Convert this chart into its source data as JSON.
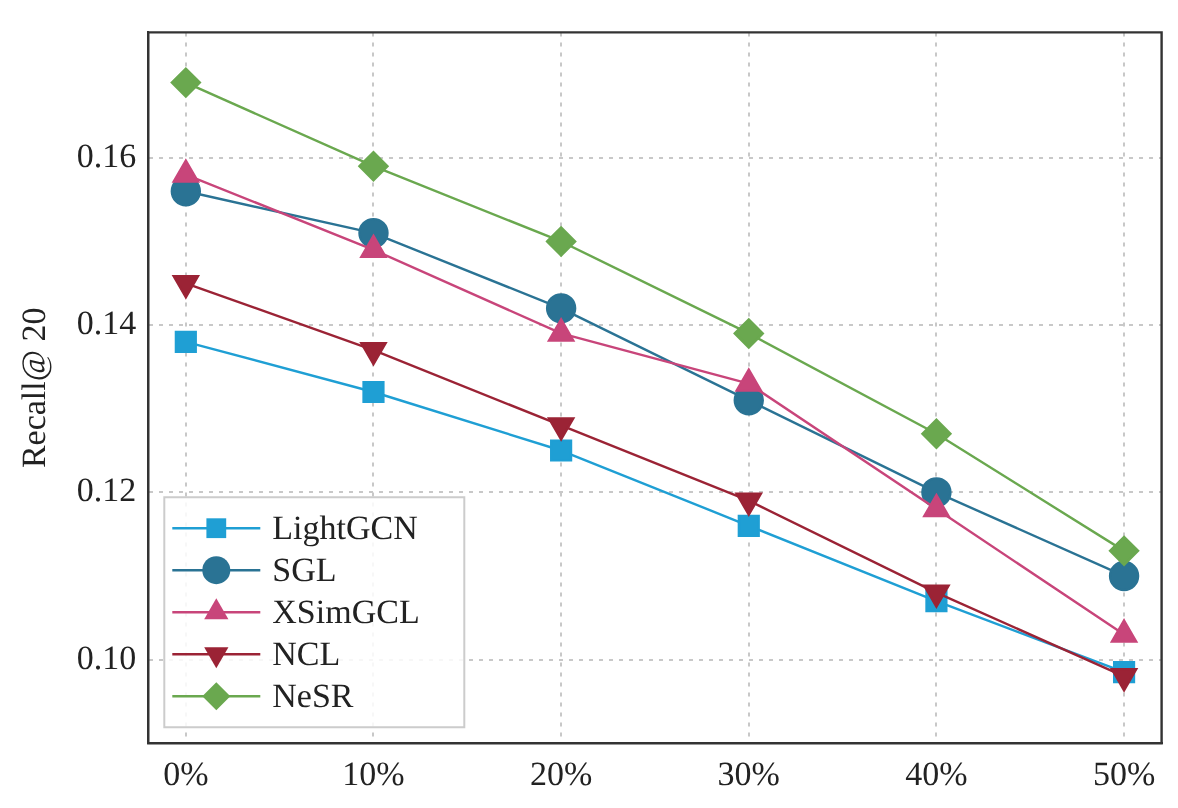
{
  "chart_data": {
    "type": "line",
    "ylabel": "Recall@ 20",
    "x": [
      0,
      10,
      20,
      30,
      40,
      50
    ],
    "xlim": [
      -2,
      52
    ],
    "xticks": [
      {
        "value": 0,
        "label": "0%"
      },
      {
        "value": 10,
        "label": "10%"
      },
      {
        "value": 20,
        "label": "20%"
      },
      {
        "value": 30,
        "label": "30%"
      },
      {
        "value": 40,
        "label": "40%"
      },
      {
        "value": 50,
        "label": "50%"
      }
    ],
    "ylim": [
      0.09,
      0.175
    ],
    "yticks": [
      {
        "value": 0.1,
        "label": "0.10"
      },
      {
        "value": 0.12,
        "label": "0.12"
      },
      {
        "value": 0.14,
        "label": "0.14"
      },
      {
        "value": 0.16,
        "label": "0.16"
      }
    ],
    "grid": true,
    "legend": "bottom left",
    "line_style": "solid",
    "series": [
      {
        "name": "LightGCN",
        "color": "#1f9fd4",
        "marker": "square",
        "values": [
          0.138,
          0.132,
          0.125,
          0.116,
          0.107,
          0.0985
        ]
      },
      {
        "name": "SGL",
        "color": "#2a7394",
        "marker": "circle",
        "values": [
          0.156,
          0.151,
          0.142,
          0.131,
          0.12,
          0.11
        ]
      },
      {
        "name": "XSimGCL",
        "color": "#c8457a",
        "marker": "triangle",
        "values": [
          0.158,
          0.149,
          0.139,
          0.133,
          0.118,
          0.103
        ]
      },
      {
        "name": "NCL",
        "color": "#9b2335",
        "marker": "triangle-down",
        "values": [
          0.145,
          0.137,
          0.128,
          0.119,
          0.108,
          0.098
        ]
      },
      {
        "name": "NeSR",
        "color": "#6aa84f",
        "marker": "diamond",
        "values": [
          0.169,
          0.159,
          0.15,
          0.139,
          0.127,
          0.113
        ]
      }
    ]
  }
}
